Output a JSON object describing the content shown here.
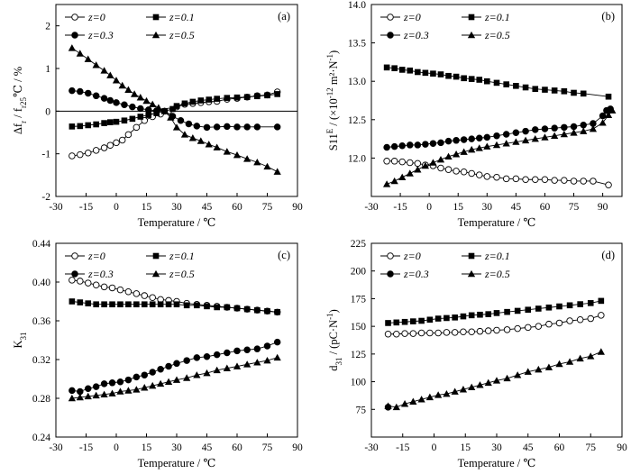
{
  "figure": {
    "x_axis_label": "Temperature / ℃"
  },
  "chart_data": [
    {
      "type": "line",
      "panel_label": "(a)",
      "ylabel": "Δf_r / f_r25℃ / %",
      "xlabel": "Temperature / ℃",
      "xlim": [
        -30,
        90
      ],
      "ylim": [
        -2,
        2.5
      ],
      "xticks": [
        -30,
        -15,
        0,
        15,
        30,
        45,
        60,
        75,
        90
      ],
      "yticks": [
        -2,
        -1,
        0,
        1,
        2
      ],
      "x_tick_labels": [
        "-30",
        "-15",
        "0",
        "15",
        "30",
        "45",
        "60",
        "75",
        "90"
      ],
      "y_tick_labels": [
        "-2",
        "-1",
        "0",
        "1",
        "2"
      ],
      "zero_line": true,
      "legend": {
        "placement": "top-left",
        "columns": 2
      },
      "series": [
        {
          "name": "z=0",
          "marker": "circle-open",
          "x": [
            -22,
            -18,
            -14,
            -10,
            -6,
            -3,
            0,
            3,
            6,
            10,
            14,
            18,
            22,
            26,
            30,
            34,
            38,
            42,
            46,
            50,
            55,
            60,
            65,
            70,
            75,
            80
          ],
          "y": [
            -1.05,
            -1.02,
            -0.98,
            -0.92,
            -0.86,
            -0.8,
            -0.74,
            -0.68,
            -0.55,
            -0.38,
            -0.22,
            -0.13,
            -0.07,
            0.0,
            0.1,
            0.16,
            0.18,
            0.2,
            0.22,
            0.23,
            0.28,
            0.3,
            0.33,
            0.36,
            0.38,
            0.45
          ]
        },
        {
          "name": "z=0.1",
          "marker": "square-filled",
          "x": [
            -22,
            -18,
            -14,
            -10,
            -6,
            -3,
            0,
            4,
            8,
            12,
            16,
            20,
            24,
            28,
            30,
            34,
            38,
            42,
            46,
            50,
            55,
            60,
            65,
            70,
            75,
            80
          ],
          "y": [
            -0.36,
            -0.35,
            -0.33,
            -0.31,
            -0.28,
            -0.26,
            -0.25,
            -0.22,
            -0.18,
            -0.13,
            -0.09,
            -0.05,
            0.0,
            0.05,
            0.12,
            0.18,
            0.22,
            0.25,
            0.27,
            0.29,
            0.31,
            0.32,
            0.33,
            0.35,
            0.37,
            0.4
          ]
        },
        {
          "name": "z=0.3",
          "marker": "circle-filled",
          "x": [
            -22,
            -18,
            -14,
            -10,
            -6,
            -3,
            0,
            4,
            8,
            12,
            16,
            20,
            24,
            28,
            32,
            36,
            40,
            45,
            50,
            55,
            60,
            65,
            70,
            80
          ],
          "y": [
            0.48,
            0.46,
            0.42,
            0.36,
            0.3,
            0.25,
            0.2,
            0.15,
            0.1,
            0.06,
            0.03,
            0.01,
            0.0,
            -0.12,
            -0.22,
            -0.3,
            -0.35,
            -0.38,
            -0.37,
            -0.36,
            -0.37,
            -0.37,
            -0.37,
            -0.37
          ]
        },
        {
          "name": "z=0.5",
          "marker": "triangle-filled",
          "x": [
            -22,
            -18,
            -14,
            -10,
            -6,
            -3,
            0,
            3,
            6,
            9,
            12,
            15,
            18,
            21,
            24,
            27,
            30,
            34,
            38,
            42,
            46,
            50,
            55,
            60,
            65,
            70,
            75,
            80
          ],
          "y": [
            1.48,
            1.35,
            1.22,
            1.08,
            0.95,
            0.84,
            0.72,
            0.6,
            0.5,
            0.4,
            0.32,
            0.24,
            0.16,
            0.08,
            0.0,
            -0.15,
            -0.38,
            -0.55,
            -0.63,
            -0.7,
            -0.78,
            -0.85,
            -0.95,
            -1.03,
            -1.12,
            -1.2,
            -1.3,
            -1.42
          ]
        }
      ]
    },
    {
      "type": "line",
      "panel_label": "(b)",
      "ylabel": "S11^E / (×10^-12 m²·N^-1)",
      "xlabel": "Temperature / ℃",
      "xlim": [
        -30,
        100
      ],
      "ylim": [
        11.5,
        14.0
      ],
      "xticks": [
        -30,
        -15,
        0,
        15,
        30,
        45,
        60,
        75,
        90
      ],
      "yticks": [
        11.5,
        12.0,
        12.5,
        13.0,
        13.5,
        14.0
      ],
      "x_tick_labels": [
        "-30",
        "-15",
        "0",
        "15",
        "30",
        "45",
        "60",
        "75",
        "90"
      ],
      "y_tick_labels": [
        "",
        "12.0",
        "12.5",
        "13.0",
        "13.5",
        "14.0"
      ],
      "zero_line": false,
      "legend": {
        "placement": "top-left",
        "columns": 2
      },
      "series": [
        {
          "name": "z=0",
          "marker": "circle-open",
          "x": [
            -22,
            -18,
            -14,
            -10,
            -6,
            -2,
            2,
            6,
            10,
            14,
            18,
            22,
            26,
            30,
            35,
            40,
            45,
            50,
            55,
            60,
            65,
            70,
            75,
            80,
            85,
            93
          ],
          "y": [
            11.96,
            11.96,
            11.95,
            11.94,
            11.93,
            11.91,
            11.9,
            11.87,
            11.85,
            11.83,
            11.82,
            11.8,
            11.78,
            11.76,
            11.75,
            11.73,
            11.73,
            11.72,
            11.72,
            11.72,
            11.71,
            11.71,
            11.7,
            11.7,
            11.7,
            11.65
          ]
        },
        {
          "name": "z=0.1",
          "marker": "square-filled",
          "x": [
            -22,
            -18,
            -14,
            -10,
            -6,
            -2,
            2,
            6,
            10,
            14,
            18,
            22,
            26,
            30,
            35,
            40,
            45,
            50,
            55,
            60,
            65,
            70,
            75,
            80,
            93
          ],
          "y": [
            13.18,
            13.17,
            13.15,
            13.14,
            13.12,
            13.11,
            13.1,
            13.09,
            13.07,
            13.06,
            13.04,
            13.03,
            13.02,
            13.0,
            12.98,
            12.96,
            12.94,
            12.92,
            12.9,
            12.89,
            12.88,
            12.87,
            12.85,
            12.84,
            12.8
          ]
        },
        {
          "name": "z=0.3",
          "marker": "circle-filled",
          "x": [
            -22,
            -18,
            -14,
            -10,
            -6,
            -2,
            2,
            6,
            10,
            14,
            18,
            22,
            26,
            30,
            35,
            40,
            45,
            50,
            55,
            60,
            65,
            70,
            75,
            80,
            85,
            90,
            92,
            94
          ],
          "y": [
            12.14,
            12.15,
            12.16,
            12.17,
            12.17,
            12.18,
            12.19,
            12.2,
            12.22,
            12.23,
            12.24,
            12.25,
            12.26,
            12.27,
            12.29,
            12.31,
            12.33,
            12.35,
            12.37,
            12.38,
            12.39,
            12.4,
            12.41,
            12.43,
            12.45,
            12.55,
            12.62,
            12.64
          ]
        },
        {
          "name": "z=0.5",
          "marker": "triangle-filled",
          "x": [
            -22,
            -18,
            -14,
            -10,
            -6,
            -2,
            2,
            6,
            10,
            14,
            18,
            22,
            26,
            30,
            35,
            40,
            45,
            50,
            55,
            60,
            65,
            70,
            75,
            80,
            85,
            90,
            93,
            95
          ],
          "y": [
            11.66,
            11.7,
            11.75,
            11.8,
            11.85,
            11.9,
            11.94,
            11.98,
            12.02,
            12.05,
            12.08,
            12.11,
            12.13,
            12.15,
            12.17,
            12.19,
            12.21,
            12.23,
            12.25,
            12.27,
            12.29,
            12.31,
            12.33,
            12.35,
            12.38,
            12.46,
            12.56,
            12.62
          ]
        }
      ]
    },
    {
      "type": "line",
      "panel_label": "(c)",
      "ylabel": "K_31",
      "xlabel": "Temperature / ℃",
      "xlim": [
        -30,
        90
      ],
      "ylim": [
        0.24,
        0.44
      ],
      "xticks": [
        -30,
        -15,
        0,
        15,
        30,
        45,
        60,
        75,
        90
      ],
      "yticks": [
        0.24,
        0.28,
        0.32,
        0.36,
        0.4,
        0.44
      ],
      "x_tick_labels": [
        "-30",
        "-15",
        "0",
        "15",
        "30",
        "45",
        "60",
        "75",
        "90"
      ],
      "y_tick_labels": [
        "0.24",
        "0.28",
        "0.32",
        "0.36",
        "0.40",
        "0.44"
      ],
      "zero_line": false,
      "legend": {
        "placement": "top-left",
        "columns": 2
      },
      "series": [
        {
          "name": "z=0",
          "marker": "circle-open",
          "x": [
            -22,
            -18,
            -14,
            -10,
            -6,
            -2,
            2,
            6,
            10,
            14,
            18,
            22,
            26,
            30,
            35,
            40,
            45,
            50,
            55,
            60,
            65,
            70,
            75,
            80
          ],
          "y": [
            0.402,
            0.401,
            0.399,
            0.397,
            0.395,
            0.394,
            0.392,
            0.39,
            0.388,
            0.386,
            0.384,
            0.382,
            0.381,
            0.38,
            0.378,
            0.377,
            0.376,
            0.375,
            0.374,
            0.373,
            0.372,
            0.371,
            0.37,
            0.369
          ]
        },
        {
          "name": "z=0.1",
          "marker": "square-filled",
          "x": [
            -22,
            -18,
            -14,
            -10,
            -6,
            -2,
            2,
            6,
            10,
            14,
            18,
            22,
            26,
            30,
            35,
            40,
            45,
            50,
            55,
            60,
            65,
            70,
            75,
            80
          ],
          "y": [
            0.38,
            0.379,
            0.378,
            0.377,
            0.377,
            0.377,
            0.377,
            0.377,
            0.377,
            0.377,
            0.377,
            0.377,
            0.377,
            0.377,
            0.376,
            0.376,
            0.375,
            0.374,
            0.374,
            0.373,
            0.372,
            0.371,
            0.37,
            0.369
          ]
        },
        {
          "name": "z=0.3",
          "marker": "circle-filled",
          "x": [
            -22,
            -18,
            -14,
            -10,
            -6,
            -2,
            2,
            6,
            10,
            14,
            18,
            22,
            26,
            30,
            35,
            40,
            45,
            50,
            55,
            60,
            65,
            70,
            75,
            80
          ],
          "y": [
            0.288,
            0.287,
            0.29,
            0.292,
            0.295,
            0.296,
            0.297,
            0.299,
            0.302,
            0.304,
            0.307,
            0.31,
            0.313,
            0.316,
            0.319,
            0.322,
            0.323,
            0.325,
            0.327,
            0.329,
            0.33,
            0.331,
            0.334,
            0.338
          ]
        },
        {
          "name": "z=0.5",
          "marker": "triangle-filled",
          "x": [
            -22,
            -18,
            -14,
            -10,
            -6,
            -2,
            2,
            6,
            10,
            14,
            18,
            22,
            26,
            30,
            35,
            40,
            45,
            50,
            55,
            60,
            65,
            70,
            75,
            80
          ],
          "y": [
            0.28,
            0.281,
            0.282,
            0.283,
            0.284,
            0.285,
            0.287,
            0.288,
            0.289,
            0.291,
            0.293,
            0.295,
            0.297,
            0.299,
            0.301,
            0.304,
            0.306,
            0.309,
            0.311,
            0.313,
            0.315,
            0.317,
            0.319,
            0.322
          ]
        }
      ]
    },
    {
      "type": "line",
      "panel_label": "(d)",
      "ylabel": "d_31 / (pC·N^-1)",
      "xlabel": "Temperature / ℃",
      "xlim": [
        -30,
        90
      ],
      "ylim": [
        50,
        225
      ],
      "xticks": [
        -30,
        -15,
        0,
        15,
        30,
        45,
        60,
        75,
        90
      ],
      "yticks": [
        50,
        75,
        100,
        125,
        150,
        175,
        200,
        225
      ],
      "x_tick_labels": [
        "-30",
        "-15",
        "0",
        "15",
        "30",
        "45",
        "60",
        "75",
        "90"
      ],
      "y_tick_labels": [
        "",
        "75",
        "100",
        "125",
        "150",
        "175",
        "200",
        "225"
      ],
      "zero_line": false,
      "legend": {
        "placement": "top-left",
        "columns": 2
      },
      "series": [
        {
          "name": "z=0",
          "marker": "circle-open",
          "x": [
            -22,
            -18,
            -14,
            -10,
            -6,
            -2,
            2,
            6,
            10,
            14,
            18,
            22,
            26,
            30,
            35,
            40,
            45,
            50,
            55,
            60,
            65,
            70,
            75,
            80
          ],
          "y": [
            143,
            143,
            143.5,
            143.5,
            144,
            144,
            144,
            144.5,
            144.5,
            145,
            145,
            145.5,
            146,
            146.5,
            147,
            148,
            149,
            150,
            152,
            153,
            155,
            156,
            157,
            160
          ]
        },
        {
          "name": "z=0.1",
          "marker": "square-filled",
          "x": [
            -22,
            -18,
            -14,
            -10,
            -6,
            -2,
            2,
            6,
            10,
            14,
            18,
            22,
            26,
            30,
            35,
            40,
            45,
            50,
            55,
            60,
            65,
            70,
            75,
            80
          ],
          "y": [
            153,
            153.5,
            154,
            154.5,
            155,
            156,
            157,
            157.5,
            158,
            159,
            160,
            160.5,
            161,
            162,
            163,
            164,
            165,
            166,
            167,
            168,
            169,
            170,
            171,
            173
          ]
        },
        {
          "name": "z=0.3",
          "marker": "circle-filled",
          "x": [
            -22
          ],
          "y": [
            77
          ]
        },
        {
          "name": "z=0.5",
          "marker": "triangle-filled",
          "x": [
            -22,
            -18,
            -14,
            -10,
            -6,
            -2,
            2,
            6,
            10,
            14,
            18,
            22,
            26,
            30,
            35,
            40,
            45,
            50,
            55,
            60,
            65,
            70,
            75,
            80
          ],
          "y": [
            78,
            77,
            80,
            82,
            84,
            86,
            88,
            89,
            91,
            93,
            95,
            97,
            99,
            101,
            103,
            106,
            109,
            111,
            113,
            116,
            118,
            121,
            123,
            127
          ]
        }
      ]
    }
  ]
}
